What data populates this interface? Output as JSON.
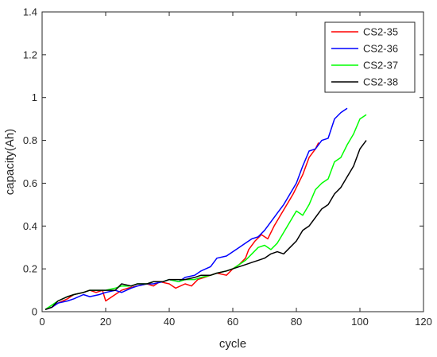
{
  "chart_data": {
    "type": "line",
    "title": "",
    "xlabel": "cycle",
    "ylabel": "capacity(Ah)",
    "xlim": [
      0,
      120
    ],
    "ylim": [
      0,
      1.4
    ],
    "xticks": [
      0,
      20,
      40,
      60,
      80,
      100,
      120
    ],
    "yticks": [
      0,
      0.2,
      0.4,
      0.6,
      0.8,
      1,
      1.2,
      1.4
    ],
    "ytick_labels": [
      "0",
      "0.2",
      "0.4",
      "0.6",
      "0.8",
      "1",
      "1.2",
      "1.4"
    ],
    "grid": false,
    "legend_position": "top-right",
    "series": [
      {
        "name": "CS2-35",
        "color": "#ff0000",
        "x": [
          1,
          3,
          5,
          8,
          10,
          13,
          15,
          17,
          19,
          20,
          22,
          25,
          27,
          30,
          33,
          35,
          37,
          40,
          42,
          45,
          47,
          49,
          51,
          53,
          55,
          58,
          60,
          62,
          64,
          65,
          67,
          69,
          71,
          73,
          75,
          77,
          79,
          80,
          82,
          84,
          86,
          87
        ],
        "y": [
          0.01,
          0.02,
          0.04,
          0.06,
          0.08,
          0.09,
          0.1,
          0.09,
          0.1,
          0.05,
          0.07,
          0.1,
          0.11,
          0.12,
          0.13,
          0.12,
          0.14,
          0.13,
          0.11,
          0.13,
          0.12,
          0.15,
          0.16,
          0.17,
          0.18,
          0.17,
          0.2,
          0.22,
          0.25,
          0.29,
          0.33,
          0.36,
          0.34,
          0.4,
          0.45,
          0.5,
          0.55,
          0.58,
          0.64,
          0.72,
          0.76,
          0.79
        ]
      },
      {
        "name": "CS2-36",
        "color": "#0000ff",
        "x": [
          1,
          3,
          5,
          8,
          10,
          13,
          15,
          18,
          20,
          23,
          25,
          28,
          30,
          33,
          35,
          38,
          40,
          43,
          45,
          48,
          50,
          53,
          55,
          58,
          60,
          62,
          64,
          66,
          68,
          70,
          72,
          74,
          76,
          78,
          80,
          82,
          84,
          86,
          88,
          90,
          92,
          94,
          95,
          96
        ],
        "y": [
          0.01,
          0.02,
          0.04,
          0.05,
          0.06,
          0.08,
          0.07,
          0.08,
          0.09,
          0.1,
          0.09,
          0.11,
          0.12,
          0.13,
          0.13,
          0.14,
          0.15,
          0.14,
          0.16,
          0.17,
          0.19,
          0.21,
          0.25,
          0.26,
          0.28,
          0.3,
          0.32,
          0.34,
          0.35,
          0.38,
          0.42,
          0.46,
          0.5,
          0.55,
          0.6,
          0.68,
          0.75,
          0.76,
          0.8,
          0.81,
          0.9,
          0.93,
          0.94,
          0.95
        ]
      },
      {
        "name": "CS2-37",
        "color": "#00ff00",
        "x": [
          1,
          3,
          5,
          8,
          10,
          13,
          15,
          18,
          20,
          23,
          25,
          28,
          30,
          33,
          35,
          38,
          40,
          43,
          45,
          48,
          50,
          53,
          55,
          58,
          60,
          62,
          64,
          66,
          68,
          70,
          72,
          74,
          76,
          78,
          80,
          82,
          84,
          86,
          88,
          90,
          92,
          94,
          96,
          98,
          100,
          102
        ],
        "y": [
          0.01,
          0.03,
          0.05,
          0.07,
          0.08,
          0.09,
          0.1,
          0.1,
          0.1,
          0.11,
          0.12,
          0.12,
          0.13,
          0.13,
          0.14,
          0.14,
          0.15,
          0.14,
          0.15,
          0.15,
          0.16,
          0.17,
          0.18,
          0.19,
          0.2,
          0.22,
          0.24,
          0.27,
          0.3,
          0.31,
          0.29,
          0.32,
          0.37,
          0.42,
          0.47,
          0.45,
          0.5,
          0.57,
          0.6,
          0.62,
          0.7,
          0.72,
          0.78,
          0.83,
          0.9,
          0.92
        ]
      },
      {
        "name": "CS2-38",
        "color": "#000000",
        "x": [
          1,
          3,
          5,
          8,
          10,
          13,
          15,
          18,
          20,
          23,
          25,
          28,
          30,
          33,
          35,
          38,
          40,
          43,
          45,
          48,
          50,
          53,
          55,
          58,
          60,
          62,
          64,
          66,
          68,
          70,
          72,
          74,
          76,
          78,
          80,
          82,
          84,
          86,
          88,
          90,
          92,
          94,
          96,
          98,
          100,
          102
        ],
        "y": [
          0.01,
          0.02,
          0.05,
          0.07,
          0.08,
          0.09,
          0.1,
          0.1,
          0.1,
          0.1,
          0.13,
          0.12,
          0.13,
          0.13,
          0.14,
          0.14,
          0.15,
          0.15,
          0.15,
          0.16,
          0.17,
          0.17,
          0.18,
          0.19,
          0.2,
          0.21,
          0.22,
          0.23,
          0.24,
          0.25,
          0.27,
          0.28,
          0.27,
          0.3,
          0.33,
          0.38,
          0.4,
          0.44,
          0.48,
          0.5,
          0.55,
          0.58,
          0.63,
          0.68,
          0.76,
          0.8
        ]
      }
    ]
  }
}
